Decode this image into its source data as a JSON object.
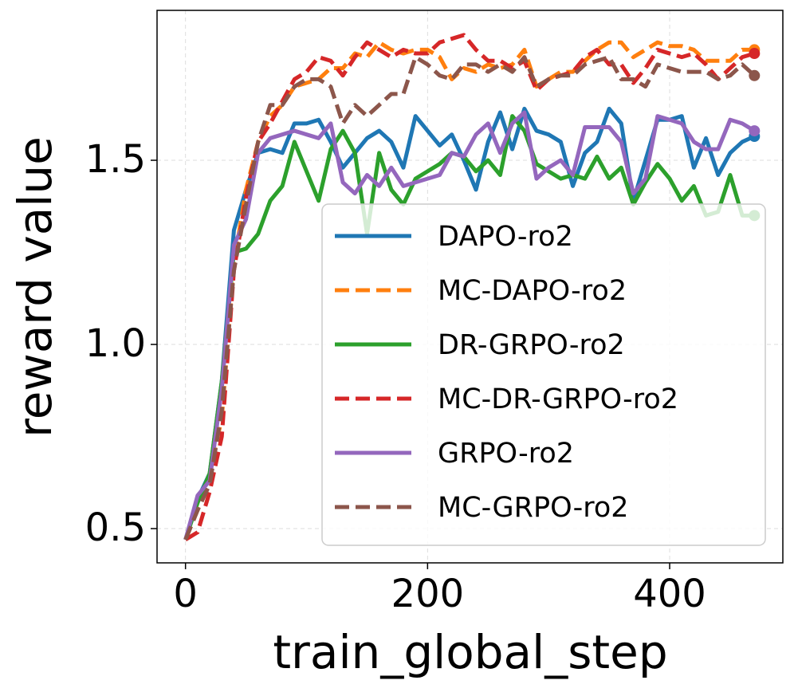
{
  "chart_data": {
    "type": "line",
    "xlabel": "train_global_step",
    "ylabel": "reward value",
    "x": [
      0,
      10,
      20,
      30,
      40,
      50,
      60,
      70,
      80,
      90,
      100,
      110,
      120,
      130,
      140,
      150,
      160,
      170,
      180,
      190,
      200,
      210,
      220,
      230,
      240,
      250,
      260,
      270,
      280,
      290,
      300,
      310,
      320,
      330,
      340,
      350,
      360,
      370,
      380,
      390,
      400,
      410,
      420,
      430,
      440,
      450,
      460,
      470
    ],
    "xlim": [
      -23.5,
      493.5
    ],
    "xticks": [
      0,
      200,
      400
    ],
    "ylim": [
      0.407,
      1.907
    ],
    "yticks": [
      0.5,
      {
        "value": 1,
        "label": "1.0"
      },
      1.5
    ],
    "grid": true,
    "legend": "lower right",
    "series": [
      {
        "name": "DAPO-ro2",
        "color": "#1f77b4",
        "linestyle": "solid",
        "values": [
          0.47,
          0.58,
          0.65,
          0.9,
          1.31,
          1.42,
          1.52,
          1.53,
          1.52,
          1.6,
          1.6,
          1.61,
          1.55,
          1.48,
          1.52,
          1.56,
          1.58,
          1.55,
          1.48,
          1.62,
          1.58,
          1.54,
          1.57,
          1.5,
          1.42,
          1.55,
          1.63,
          1.53,
          1.64,
          1.58,
          1.57,
          1.55,
          1.43,
          1.52,
          1.55,
          1.64,
          1.6,
          1.39,
          1.5,
          1.61,
          1.61,
          1.62,
          1.48,
          1.56,
          1.46,
          1.52,
          1.55,
          1.565
        ]
      },
      {
        "name": "MC-DAPO-ro2",
        "color": "#ff7f0e",
        "linestyle": "dashed",
        "values": [
          0.47,
          0.55,
          0.65,
          0.8,
          1.22,
          1.42,
          1.55,
          1.62,
          1.65,
          1.7,
          1.71,
          1.72,
          1.75,
          1.75,
          1.79,
          1.78,
          1.82,
          1.8,
          1.79,
          1.8,
          1.8,
          1.78,
          1.72,
          1.75,
          1.74,
          1.76,
          1.75,
          1.76,
          1.8,
          1.7,
          1.72,
          1.74,
          1.74,
          1.77,
          1.8,
          1.82,
          1.82,
          1.78,
          1.8,
          1.82,
          1.81,
          1.81,
          1.8,
          1.77,
          1.77,
          1.77,
          1.8,
          1.8
        ]
      },
      {
        "name": "DR-GRPO-ro2",
        "color": "#2ca02c",
        "linestyle": "solid",
        "values": [
          0.47,
          0.57,
          0.65,
          0.9,
          1.25,
          1.26,
          1.3,
          1.39,
          1.43,
          1.55,
          1.47,
          1.39,
          1.53,
          1.58,
          1.52,
          1.3,
          1.52,
          1.42,
          1.38,
          1.45,
          1.47,
          1.49,
          1.52,
          1.51,
          1.47,
          1.5,
          1.46,
          1.62,
          1.58,
          1.49,
          1.47,
          1.45,
          1.46,
          1.45,
          1.51,
          1.45,
          1.48,
          1.38,
          1.44,
          1.49,
          1.45,
          1.39,
          1.43,
          1.35,
          1.36,
          1.46,
          1.35,
          1.35
        ]
      },
      {
        "name": "MC-DR-GRPO-ro2",
        "color": "#d62728",
        "linestyle": "dashed",
        "values": [
          0.47,
          0.49,
          0.6,
          0.75,
          1.2,
          1.4,
          1.55,
          1.6,
          1.66,
          1.72,
          1.74,
          1.78,
          1.77,
          1.73,
          1.78,
          1.82,
          1.8,
          1.78,
          1.8,
          1.79,
          1.79,
          1.82,
          1.83,
          1.84,
          1.8,
          1.77,
          1.77,
          1.75,
          1.77,
          1.69,
          1.72,
          1.73,
          1.74,
          1.78,
          1.8,
          1.76,
          1.76,
          1.71,
          1.75,
          1.8,
          1.79,
          1.78,
          1.79,
          1.76,
          1.72,
          1.75,
          1.78,
          1.79
        ]
      },
      {
        "name": "GRPO-ro2",
        "color": "#9467bd",
        "linestyle": "solid",
        "values": [
          0.47,
          0.59,
          0.63,
          0.88,
          1.27,
          1.34,
          1.52,
          1.56,
          1.57,
          1.58,
          1.57,
          1.56,
          1.6,
          1.44,
          1.41,
          1.46,
          1.43,
          1.48,
          1.43,
          1.44,
          1.45,
          1.46,
          1.52,
          1.51,
          1.57,
          1.6,
          1.52,
          1.6,
          1.63,
          1.45,
          1.48,
          1.5,
          1.46,
          1.59,
          1.59,
          1.59,
          1.55,
          1.41,
          1.45,
          1.62,
          1.61,
          1.6,
          1.55,
          1.53,
          1.53,
          1.61,
          1.6,
          1.58
        ]
      },
      {
        "name": "MC-GRPO-ro2",
        "color": "#8c564b",
        "linestyle": "dashed",
        "values": [
          0.47,
          0.55,
          0.62,
          0.82,
          1.2,
          1.38,
          1.55,
          1.65,
          1.65,
          1.7,
          1.72,
          1.72,
          1.7,
          1.6,
          1.65,
          1.62,
          1.65,
          1.68,
          1.68,
          1.78,
          1.76,
          1.73,
          1.72,
          1.76,
          1.76,
          1.74,
          1.76,
          1.74,
          1.78,
          1.7,
          1.72,
          1.73,
          1.73,
          1.76,
          1.77,
          1.78,
          1.72,
          1.72,
          1.7,
          1.76,
          1.75,
          1.74,
          1.74,
          1.74,
          1.72,
          1.73,
          1.76,
          1.73
        ]
      }
    ]
  }
}
